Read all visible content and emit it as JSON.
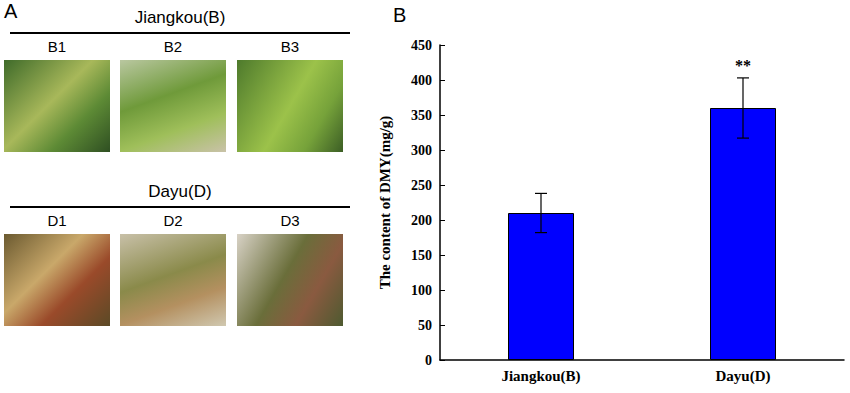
{
  "photo_panel": {
    "label": "A",
    "groups": [
      {
        "title": "Jiangkou(B)",
        "samples": [
          "B1",
          "B2",
          "B3"
        ]
      },
      {
        "title": "Dayu(D)",
        "samples": [
          "D1",
          "D2",
          "D3"
        ]
      }
    ]
  },
  "chart_data": {
    "type": "bar",
    "title": "B",
    "y_label": "The content of DMY(mg/g)",
    "categories": [
      "Jiangkou(B)",
      "Dayu(D)"
    ],
    "values": [
      210,
      360
    ],
    "errors": [
      28,
      43
    ],
    "color": "#0000ff",
    "ylim": [
      0,
      450
    ],
    "yticks": [
      0,
      50,
      100,
      150,
      200,
      250,
      300,
      350,
      400,
      450
    ],
    "annotations": [
      {
        "category": "Dayu(D)",
        "text": "**"
      }
    ],
    "grid": false
  }
}
